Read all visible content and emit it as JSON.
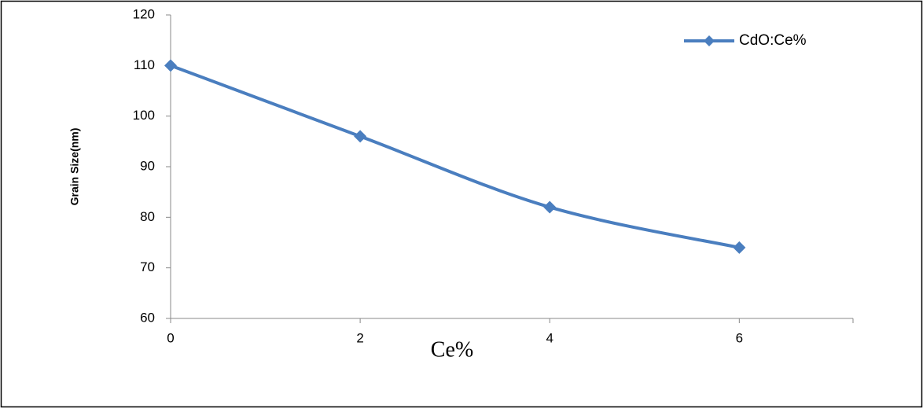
{
  "chart_data": {
    "type": "line",
    "x_label": "Ce%",
    "y_label": "Grain Size(nm)",
    "x": [
      0,
      2,
      4,
      6
    ],
    "series": [
      {
        "name": "CdO:Ce%",
        "color": "#4a7ebf",
        "values": [
          110,
          96,
          82,
          74
        ]
      }
    ],
    "xlim": [
      0,
      7.2
    ],
    "xticks": [
      0,
      2,
      4,
      6
    ],
    "ylim": [
      60,
      120
    ],
    "yticks": [
      60,
      70,
      80,
      90,
      100,
      110,
      120
    ],
    "grid": false,
    "legend": "top-right",
    "smooth": true
  }
}
